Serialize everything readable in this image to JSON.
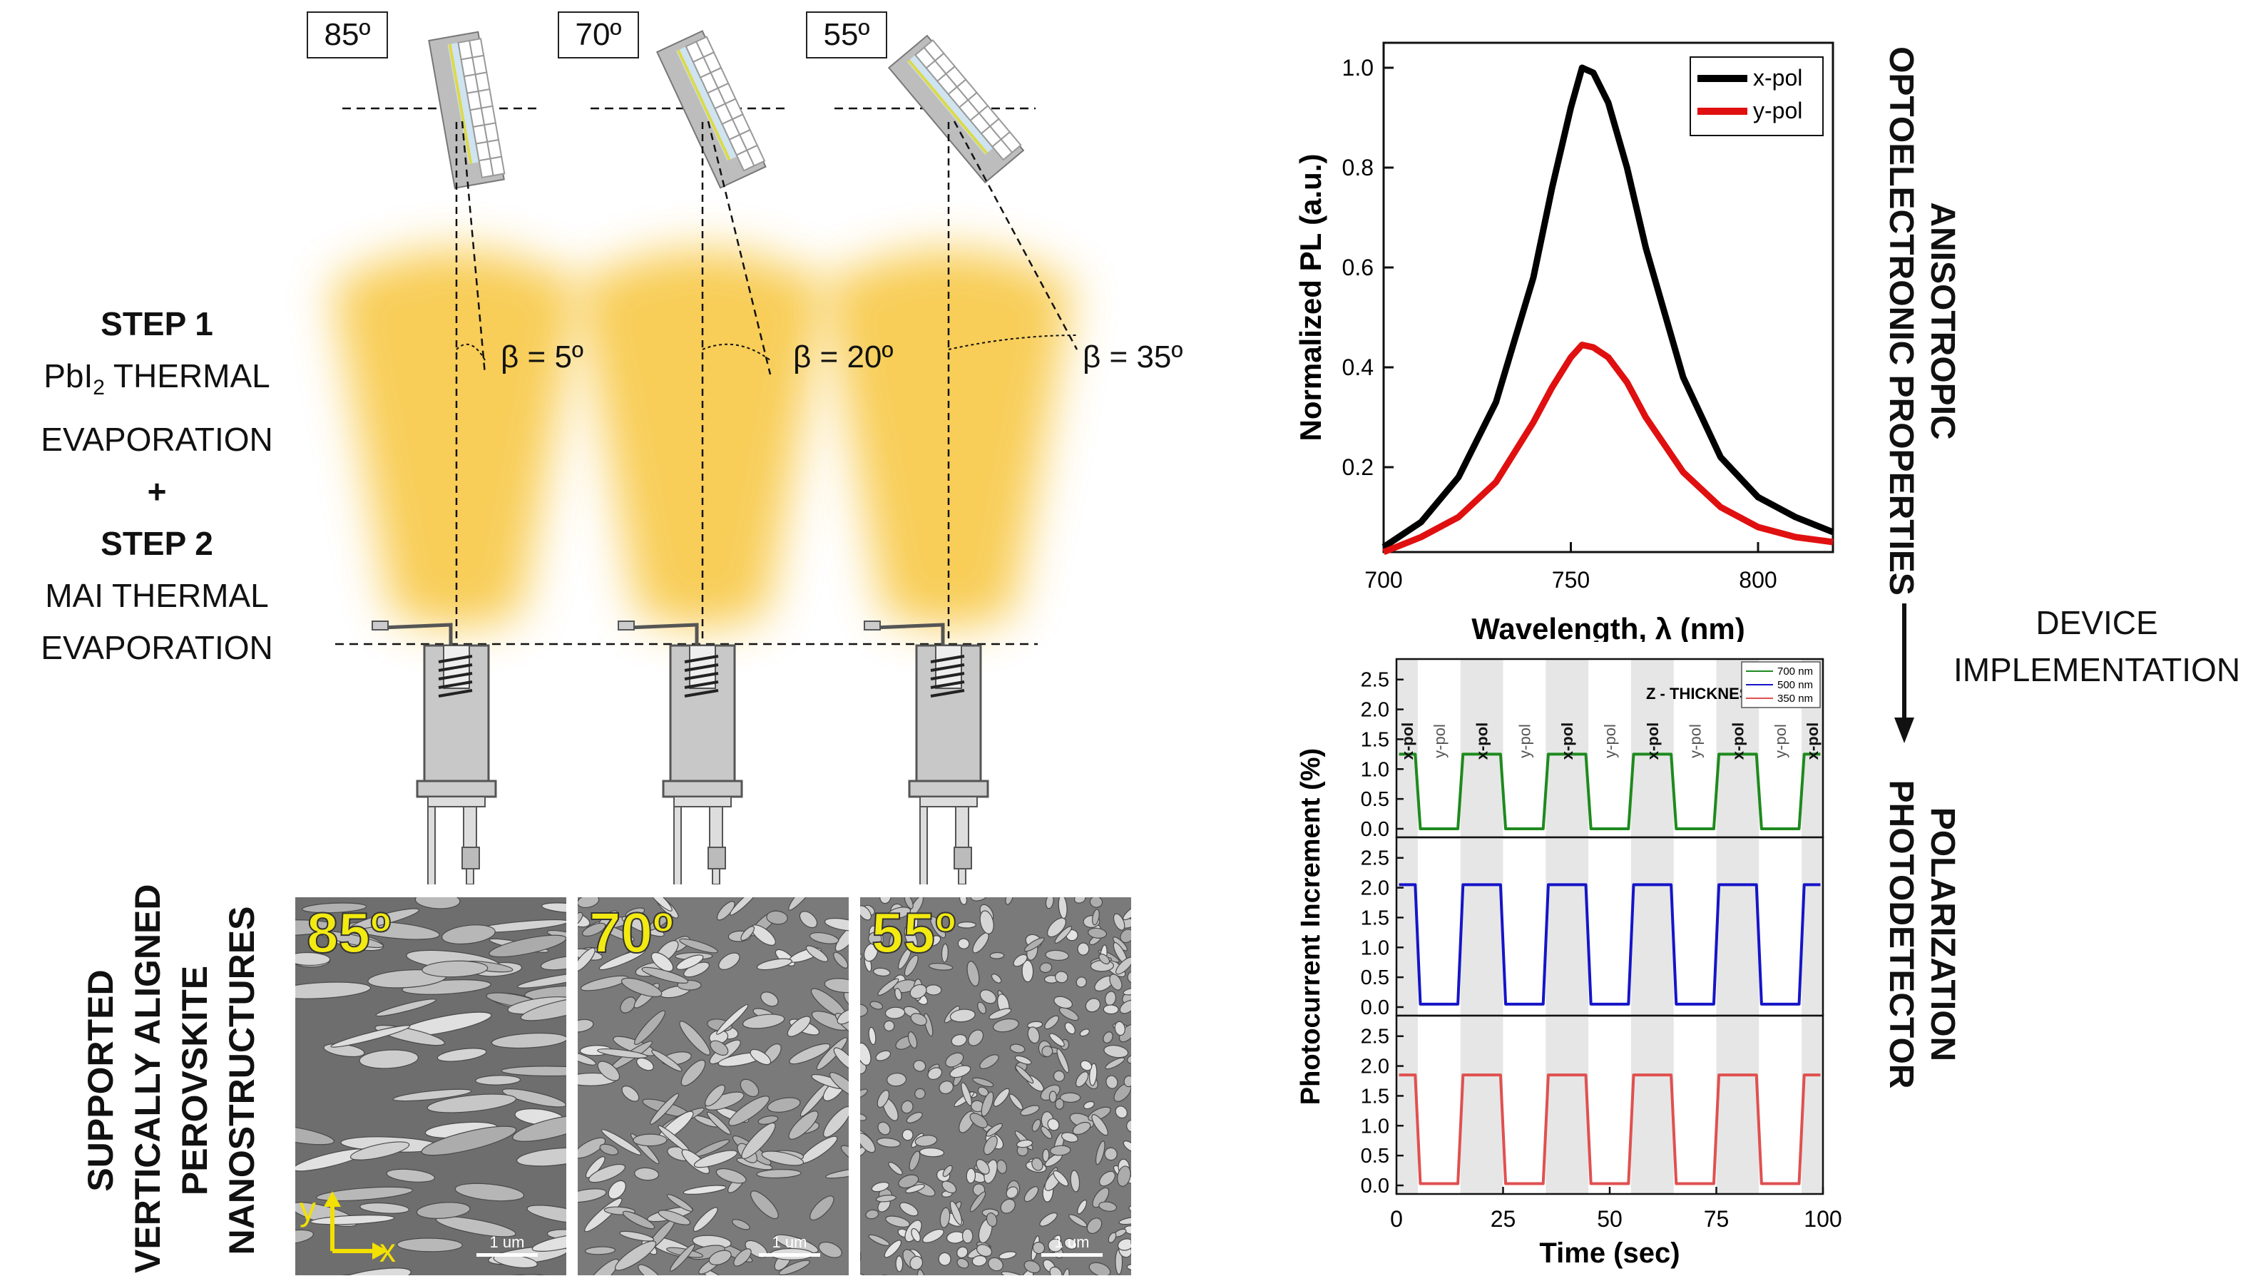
{
  "angles": [
    "85º",
    "70º",
    "55º"
  ],
  "betas": [
    "β = 5º",
    "β = 20º",
    "β = 35º"
  ],
  "steps": {
    "step1_title": "STEP 1",
    "step1_line1_pre": "PbI",
    "step1_line1_sub": "2",
    "step1_line1_post": " THERMAL",
    "step1_line2": "EVAPORATION",
    "plus": "+",
    "step2_title": "STEP 2",
    "step2_line1": "MAI THERMAL",
    "step2_line2": "EVAPORATION"
  },
  "sem": {
    "labels": [
      "85º",
      "70º",
      "55º"
    ],
    "scale_label": "1 um",
    "axis_y": "y",
    "axis_x": "x",
    "side_lines": [
      "SUPPORTED",
      "VERTICALLY ALIGNED",
      "PEROVSKITE",
      "NANOSTRUCTURES"
    ]
  },
  "side_labels": {
    "anisotropic": [
      "ANISOTROPIC",
      "OPTOELECTRONIC PROPERTIES"
    ],
    "device": [
      "DEVICE",
      "IMPLEMENTATION"
    ],
    "photodetector": [
      "POLARIZATION",
      "PHOTODETECTOR"
    ]
  },
  "colors": {
    "yellow_glow": "#f7c53a",
    "x_pol": "#000000",
    "y_pol": "#e01010",
    "green": "#1e8a1e",
    "blue": "#1515c8",
    "red_light": "#e05050",
    "sem_label": "#f2ea10",
    "axis_arrows": "#f2e000"
  },
  "chart_data": [
    {
      "type": "line",
      "xlabel": "Wavelength, λ (nm)",
      "ylabel": "Normalized PL (a.u.)",
      "xlim": [
        700,
        820
      ],
      "ylim": [
        0.03,
        1.05
      ],
      "xticks": [
        700,
        750,
        800
      ],
      "yticks": [
        0.2,
        0.4,
        0.6,
        0.8,
        1.0
      ],
      "legend": "top-right",
      "x": [
        700,
        710,
        720,
        730,
        740,
        745,
        750,
        753,
        756,
        760,
        765,
        770,
        780,
        790,
        800,
        810,
        820
      ],
      "series": [
        {
          "name": "x-pol",
          "values": [
            0.04,
            0.09,
            0.18,
            0.33,
            0.58,
            0.76,
            0.92,
            1.0,
            0.99,
            0.93,
            0.8,
            0.64,
            0.38,
            0.22,
            0.14,
            0.1,
            0.07
          ]
        },
        {
          "name": "y-pol",
          "values": [
            0.03,
            0.06,
            0.1,
            0.17,
            0.29,
            0.36,
            0.42,
            0.445,
            0.44,
            0.42,
            0.37,
            0.3,
            0.19,
            0.12,
            0.08,
            0.06,
            0.05
          ]
        }
      ]
    },
    {
      "type": "line",
      "title": "Z - THICKNESS",
      "xlabel": "Time (sec)",
      "ylabel": "Photocurrent Increment (%)",
      "xlim": [
        0,
        100
      ],
      "xticks": [
        0,
        25,
        50,
        75,
        100
      ],
      "yticks": [
        0.0,
        0.5,
        1.0,
        1.5,
        2.0,
        2.5
      ],
      "legend": "top-right",
      "pol_labels": [
        "x-pol",
        "y-pol"
      ],
      "shaded_intervals": [
        [
          0,
          5
        ],
        [
          15,
          25
        ],
        [
          35,
          45
        ],
        [
          55,
          65
        ],
        [
          75,
          85
        ],
        [
          95,
          100
        ]
      ],
      "legend_entries": [
        "700 nm",
        "500 nm",
        "350 nm"
      ],
      "series": [
        {
          "name": "700 nm",
          "on_level": 1.25,
          "off_level": 0.0
        },
        {
          "name": "500 nm",
          "on_level": 2.05,
          "off_level": 0.05
        },
        {
          "name": "350 nm",
          "on_level": 1.85,
          "off_level": 0.03
        }
      ]
    }
  ]
}
